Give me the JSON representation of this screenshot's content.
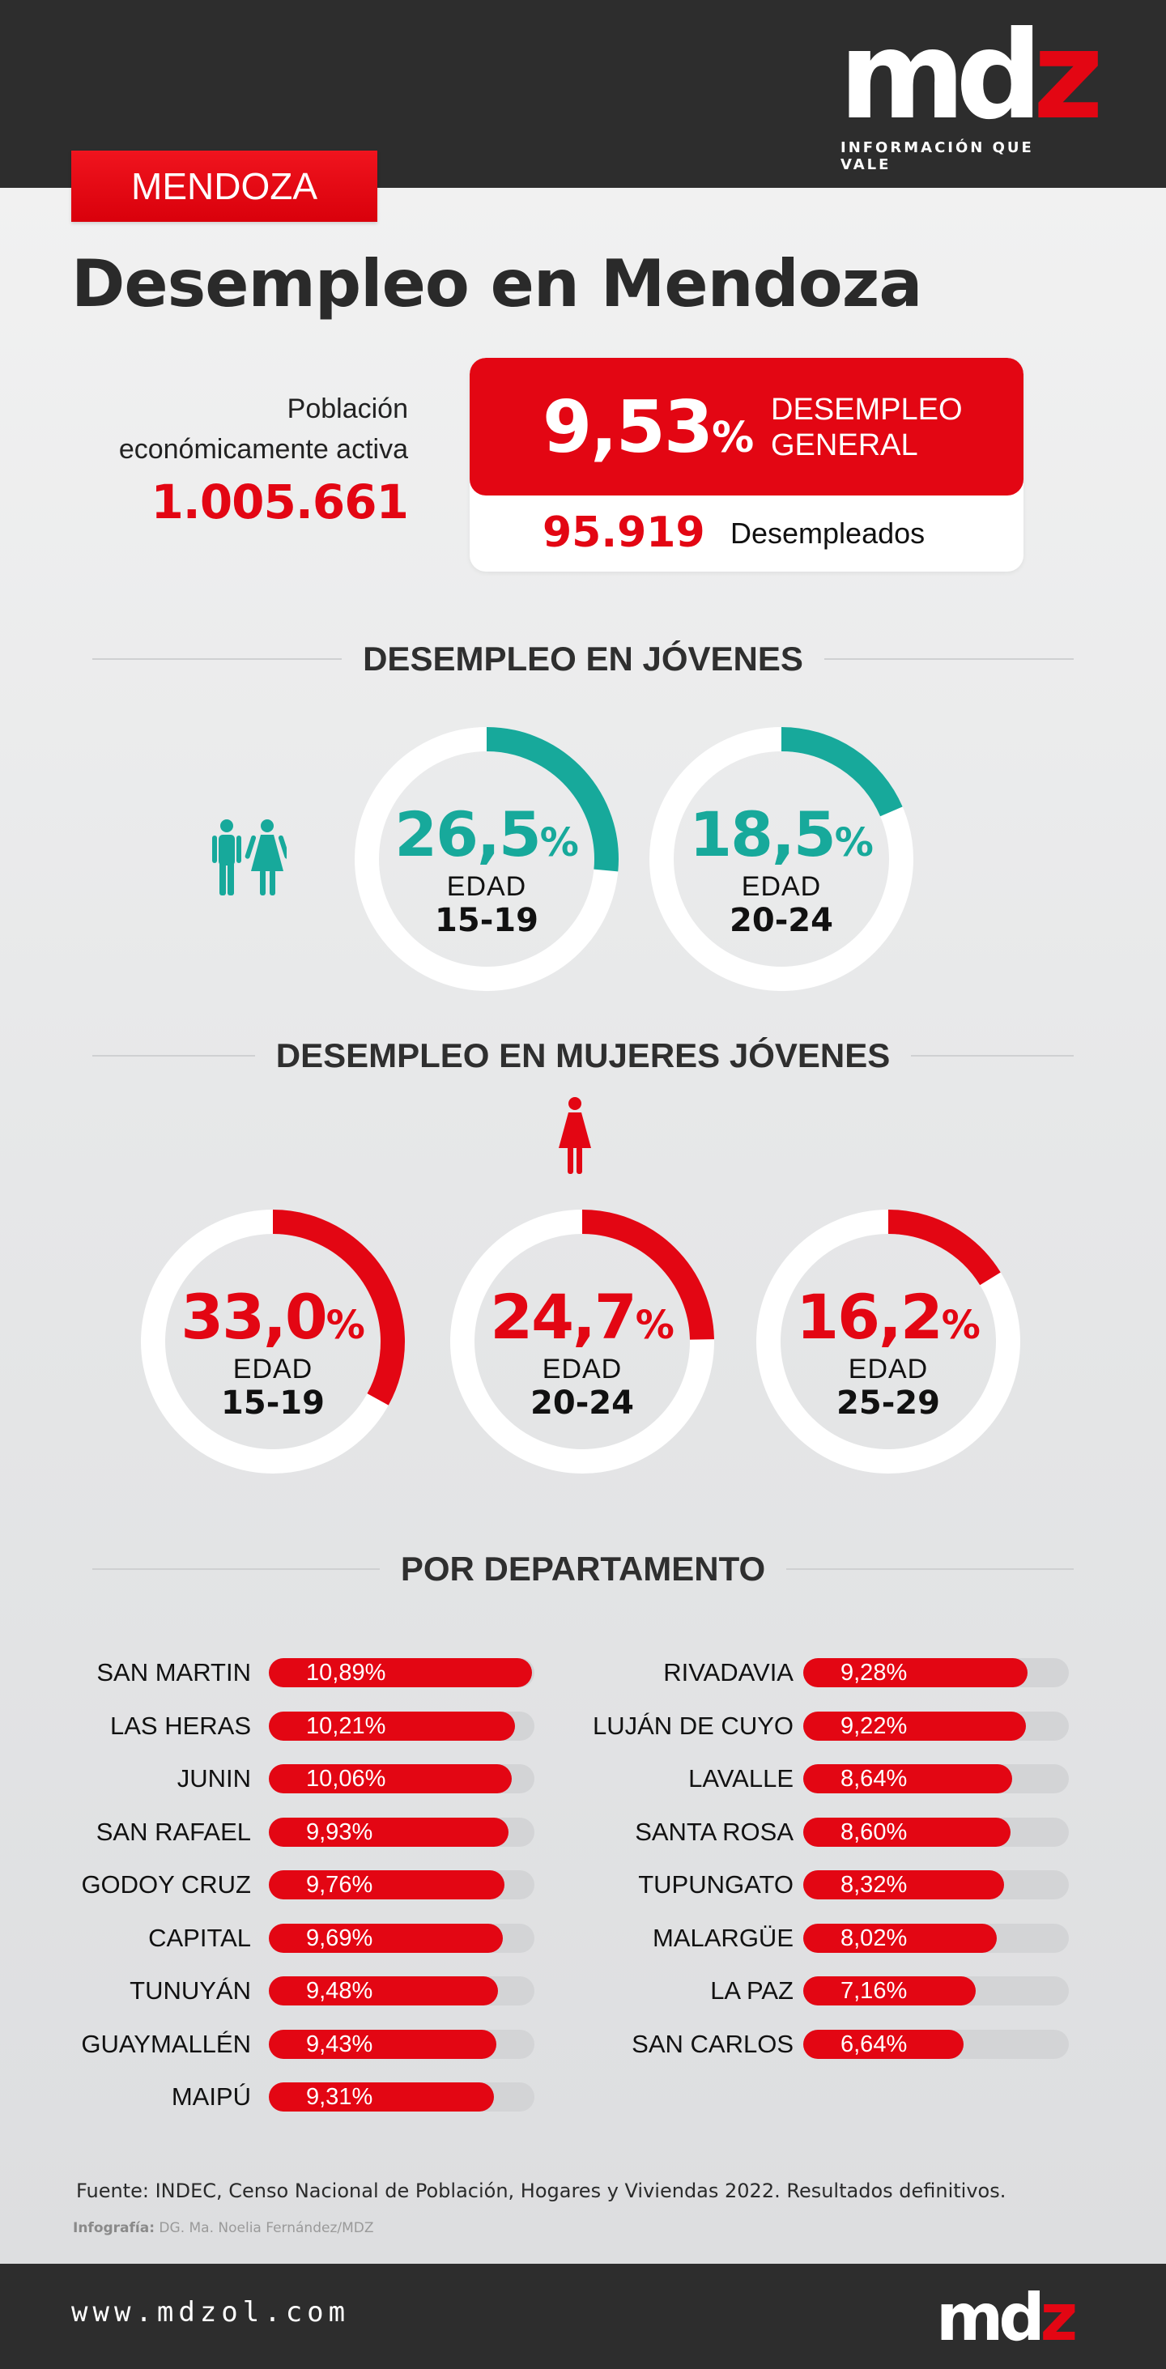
{
  "header": {
    "logo_main": "md",
    "logo_z": "z",
    "tagline": "INFORMACIÓN QUE VALE"
  },
  "region": "MENDOZA",
  "title": "Desempleo en Mendoza",
  "pea": {
    "label_line1": "Población",
    "label_line2": "económicamente activa",
    "value": "1.005.661"
  },
  "general": {
    "rate_number": "9,53",
    "rate_pct": "%",
    "label_line1": "DESEMPLEO",
    "label_line2": "GENERAL",
    "unemployed_count": "95.919",
    "unemployed_label": "Desempleados"
  },
  "colors": {
    "red": "#e30613",
    "teal": "#17a99b",
    "dark": "#2d2d2d",
    "track": "#d3d4d6"
  },
  "icons": {
    "youth": "man-and-woman-icon",
    "women": "woman-icon"
  },
  "chart_data": [
    {
      "type": "pie",
      "title": "DESEMPLEO EN JÓVENES",
      "edad_label": "EDAD",
      "items": [
        {
          "value": 26.5,
          "display": "26,5",
          "age": "15-19"
        },
        {
          "value": 18.5,
          "display": "18,5",
          "age": "20-24"
        }
      ]
    },
    {
      "type": "pie",
      "title": "DESEMPLEO EN MUJERES JÓVENES",
      "edad_label": "EDAD",
      "items": [
        {
          "value": 33.0,
          "display": "33,0",
          "age": "15-19"
        },
        {
          "value": 24.7,
          "display": "24,7",
          "age": "20-24"
        },
        {
          "value": 16.2,
          "display": "16,2",
          "age": "25-29"
        }
      ]
    },
    {
      "type": "bar",
      "title": "POR DEPARTAMENTO",
      "xlim": [
        0,
        11
      ],
      "left": [
        {
          "name": "SAN MARTIN",
          "value": 10.89,
          "display": "10,89%"
        },
        {
          "name": "LAS HERAS",
          "value": 10.21,
          "display": "10,21%"
        },
        {
          "name": "JUNIN",
          "value": 10.06,
          "display": "10,06%"
        },
        {
          "name": "SAN RAFAEL",
          "value": 9.93,
          "display": "9,93%"
        },
        {
          "name": "GODOY CRUZ",
          "value": 9.76,
          "display": "9,76%"
        },
        {
          "name": "CAPITAL",
          "value": 9.69,
          "display": "9,69%"
        },
        {
          "name": "TUNUYÁN",
          "value": 9.48,
          "display": "9,48%"
        },
        {
          "name": "GUAYMALLÉN",
          "value": 9.43,
          "display": "9,43%"
        },
        {
          "name": "MAIPÚ",
          "value": 9.31,
          "display": "9,31%"
        }
      ],
      "right": [
        {
          "name": "RIVADAVIA",
          "value": 9.28,
          "display": "9,28%"
        },
        {
          "name": "LUJÁN DE CUYO",
          "value": 9.22,
          "display": "9,22%"
        },
        {
          "name": "LAVALLE",
          "value": 8.64,
          "display": "8,64%"
        },
        {
          "name": "SANTA ROSA",
          "value": 8.6,
          "display": "8,60%"
        },
        {
          "name": "TUPUNGATO",
          "value": 8.32,
          "display": "8,32%"
        },
        {
          "name": "MALARGÜE",
          "value": 8.02,
          "display": "8,02%"
        },
        {
          "name": "LA PAZ",
          "value": 7.16,
          "display": "7,16%"
        },
        {
          "name": "SAN CARLOS",
          "value": 6.64,
          "display": "6,64%"
        }
      ]
    }
  ],
  "source": "Fuente: INDEC, Censo Nacional de Población, Hogares y Viviendas 2022. Resultados definitivos.",
  "credit_label": "Infografía:",
  "credit_value": " DG. Ma. Noelia Fernández/MDZ",
  "footer": {
    "url": "www.mdzol.com"
  }
}
